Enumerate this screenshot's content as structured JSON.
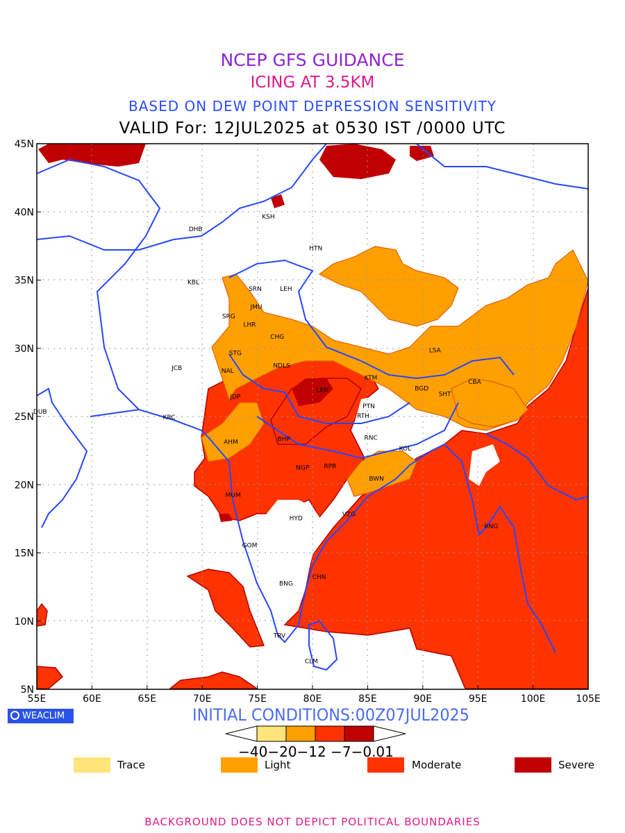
{
  "header": {
    "line1": "NCEP GFS GUIDANCE",
    "line2": "ICING AT 3.5KM",
    "line3": "BASED ON DEW POINT DEPRESSION SENSITIVITY",
    "line4": "VALID For: 12JUL2025 at 0530 IST /0000 UTC"
  },
  "map": {
    "lon_range": [
      55,
      105
    ],
    "lat_range": [
      5,
      45
    ],
    "x_ticks": [
      "55E",
      "60E",
      "65E",
      "70E",
      "75E",
      "80E",
      "85E",
      "90E",
      "95E",
      "100E",
      "105E"
    ],
    "y_ticks": [
      "5N",
      "10N",
      "15N",
      "20N",
      "25N",
      "30N",
      "35N",
      "40N",
      "45N"
    ],
    "grid": "dotted",
    "stations": [
      {
        "name": "KSH",
        "lon": 76.0,
        "lat": 39.5
      },
      {
        "name": "DHB",
        "lon": 69.4,
        "lat": 38.6
      },
      {
        "name": "HTN",
        "lon": 80.3,
        "lat": 37.2
      },
      {
        "name": "KBL",
        "lon": 69.2,
        "lat": 34.7
      },
      {
        "name": "SRN",
        "lon": 74.8,
        "lat": 34.2
      },
      {
        "name": "LEH",
        "lon": 77.6,
        "lat": 34.2
      },
      {
        "name": "JMU",
        "lon": 74.9,
        "lat": 32.9
      },
      {
        "name": "SRG",
        "lon": 72.4,
        "lat": 32.2
      },
      {
        "name": "LHR",
        "lon": 74.3,
        "lat": 31.6
      },
      {
        "name": "CHG",
        "lon": 76.8,
        "lat": 30.7
      },
      {
        "name": "STG",
        "lon": 73.0,
        "lat": 29.5
      },
      {
        "name": "JCB",
        "lon": 67.7,
        "lat": 28.4
      },
      {
        "name": "NAL",
        "lon": 72.3,
        "lat": 28.2
      },
      {
        "name": "NDLS",
        "lon": 77.2,
        "lat": 28.6
      },
      {
        "name": "LSA",
        "lon": 91.1,
        "lat": 29.7
      },
      {
        "name": "KTM",
        "lon": 85.3,
        "lat": 27.7
      },
      {
        "name": "CBA",
        "lon": 94.7,
        "lat": 27.4
      },
      {
        "name": "BGD",
        "lon": 89.9,
        "lat": 26.9
      },
      {
        "name": "SHT",
        "lon": 92.0,
        "lat": 26.5
      },
      {
        "name": "JDP",
        "lon": 73.0,
        "lat": 26.3
      },
      {
        "name": "LKN",
        "lon": 80.9,
        "lat": 26.8
      },
      {
        "name": "PTN",
        "lon": 85.1,
        "lat": 25.6
      },
      {
        "name": "DUB",
        "lon": 55.3,
        "lat": 25.2
      },
      {
        "name": "KRC",
        "lon": 67.0,
        "lat": 24.8
      },
      {
        "name": "RTH",
        "lon": 84.6,
        "lat": 24.9
      },
      {
        "name": "AHM",
        "lon": 72.6,
        "lat": 23.0
      },
      {
        "name": "BHP",
        "lon": 77.4,
        "lat": 23.2
      },
      {
        "name": "RNC",
        "lon": 85.3,
        "lat": 23.3
      },
      {
        "name": "KOL",
        "lon": 88.4,
        "lat": 22.5
      },
      {
        "name": "NGP",
        "lon": 79.1,
        "lat": 21.1
      },
      {
        "name": "RPR",
        "lon": 81.6,
        "lat": 21.2
      },
      {
        "name": "BWN",
        "lon": 85.8,
        "lat": 20.3
      },
      {
        "name": "MUM",
        "lon": 72.8,
        "lat": 19.1
      },
      {
        "name": "HYD",
        "lon": 78.5,
        "lat": 17.4
      },
      {
        "name": "VZG",
        "lon": 83.3,
        "lat": 17.7
      },
      {
        "name": "RNG",
        "lon": 96.2,
        "lat": 16.8
      },
      {
        "name": "GOM",
        "lon": 74.3,
        "lat": 15.4
      },
      {
        "name": "CHN",
        "lon": 80.6,
        "lat": 13.1
      },
      {
        "name": "BNG",
        "lon": 77.6,
        "lat": 12.6
      },
      {
        "name": "TRV",
        "lon": 77.0,
        "lat": 8.8
      },
      {
        "name": "CLM",
        "lon": 79.9,
        "lat": 6.9
      }
    ]
  },
  "footer": {
    "brand": "WEACLIM",
    "initial": "INITIAL CONDITIONS:00Z07JUL2025",
    "colorbar_ticks": "−40−20−12 −7−0.01",
    "legend": [
      {
        "label": "Trace",
        "color": "#ffe57a"
      },
      {
        "label": "Light",
        "color": "#ffa000"
      },
      {
        "label": "Moderate",
        "color": "#ff3300"
      },
      {
        "label": "Severe",
        "color": "#c00000"
      }
    ],
    "disclaimer": "BACKGROUND DOES NOT DEPICT POLITICAL BOUNDARIES"
  },
  "colors": {
    "trace": "#ffe57a",
    "light": "#ffa000",
    "moderate": "#ff3300",
    "severe": "#c00000",
    "coast": "#2646ff"
  }
}
